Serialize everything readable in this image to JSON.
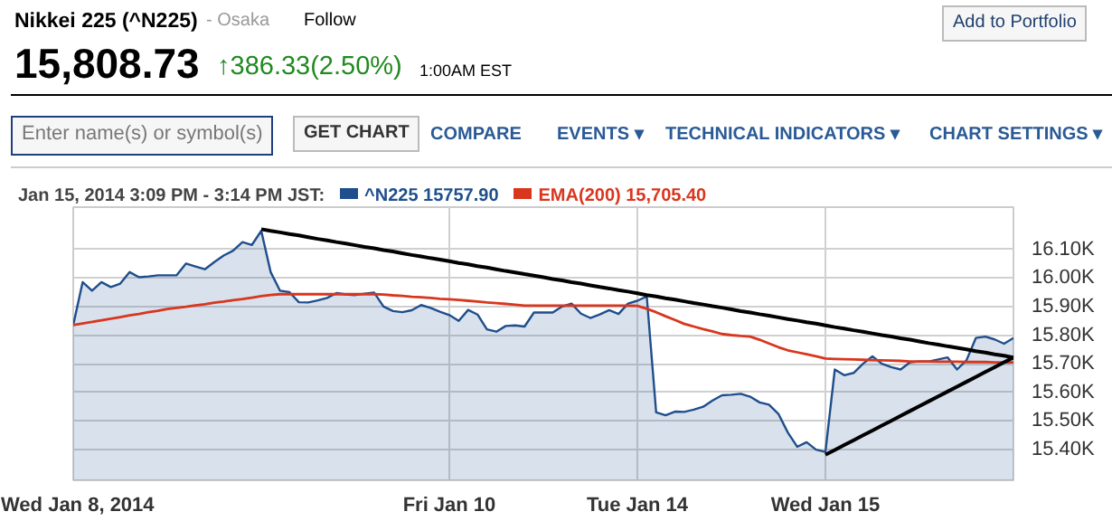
{
  "chart_data": {
    "type": "area",
    "title": "Nikkei 225 (^N225)",
    "subtitle": "15,808.73",
    "annotations": [
      "- Osaka",
      "Follow",
      "↑386.33(2.50%)",
      "1:00AM EST",
      "Add to Portfolio",
      "Enter name(s) or symbol(s)",
      "GET CHART",
      "COMPARE",
      "EVENTS ▾",
      "TECHNICAL INDICATORS ▾",
      "CHART SETTINGS ▾"
    ],
    "legend_title": "Jan 15, 2014 3:09 PM - 3:14 PM JST:",
    "legend": "top",
    "categories": [
      "Wed Jan 8, 2014",
      null,
      null,
      null,
      null,
      null,
      null,
      null,
      null,
      null,
      null,
      null,
      null,
      null,
      null,
      null,
      null,
      null,
      null,
      null,
      null,
      null,
      null,
      null,
      null,
      null,
      null,
      null,
      null,
      null,
      null,
      null,
      null,
      null,
      null,
      null,
      null,
      null,
      null,
      null,
      "Fri Jan 10",
      null,
      null,
      null,
      null,
      null,
      null,
      null,
      null,
      null,
      null,
      null,
      null,
      null,
      null,
      null,
      null,
      null,
      null,
      null,
      "Tue Jan 14",
      null,
      null,
      null,
      null,
      null,
      null,
      null,
      null,
      null,
      null,
      null,
      null,
      null,
      null,
      null,
      null,
      null,
      null,
      null,
      "Wed Jan 15",
      null,
      null,
      null,
      null,
      null,
      null,
      null,
      null,
      null,
      null,
      null,
      null,
      null,
      null,
      null,
      null,
      null,
      null,
      null,
      null
    ],
    "ylim": [
      15293,
      16247
    ],
    "yticks": [
      {
        "value": 15400,
        "label": "15.40K"
      },
      {
        "value": 15500,
        "label": "15.50K"
      },
      {
        "value": 15600,
        "label": "15.60K"
      },
      {
        "value": 15700,
        "label": "15.70K"
      },
      {
        "value": 15800,
        "label": "15.80K"
      },
      {
        "value": 15900,
        "label": "15.90K"
      },
      {
        "value": 16000,
        "label": "16.00K"
      },
      {
        "value": 16100,
        "label": "16.10K"
      }
    ],
    "grid": true,
    "series": [
      {
        "name": "^N225 15757.90",
        "color": "#1f4e8c",
        "values": [
          15835,
          15985,
          15955,
          15985,
          15968,
          15980,
          16020,
          16002,
          16005,
          16009,
          16009,
          16009,
          16050,
          16040,
          16030,
          16055,
          16078,
          16095,
          16125,
          16115,
          16164,
          16020,
          15955,
          15950,
          15915,
          15914,
          15921,
          15930,
          15947,
          15942,
          15940,
          15945,
          15949,
          15900,
          15884,
          15880,
          15887,
          15905,
          15895,
          15882,
          15870,
          15850,
          15888,
          15872,
          15820,
          15812,
          15832,
          15834,
          15830,
          15879,
          15879,
          15879,
          15900,
          15910,
          15875,
          15860,
          15872,
          15887,
          15874,
          15910,
          15920,
          15935,
          15530,
          15520,
          15533,
          15532,
          15540,
          15550,
          15572,
          15590,
          15592,
          15595,
          15585,
          15565,
          15557,
          15525,
          15460,
          15410,
          15426,
          15400,
          15392,
          15680,
          15660,
          15668,
          15700,
          15726,
          15700,
          15688,
          15680,
          15705,
          15708,
          15708,
          15715,
          15722,
          15680,
          15712,
          15790,
          15795,
          15785,
          15770,
          15790
        ]
      },
      {
        "name": "EMA(200) 15,705.40",
        "type": "line",
        "color": "#d9361e",
        "values": [
          15835,
          15841,
          15846,
          15852,
          15857,
          15863,
          15869,
          15874,
          15880,
          15885,
          15891,
          15895,
          15899,
          15904,
          15908,
          15913,
          15917,
          15922,
          15926,
          15931,
          15936,
          15940,
          15943,
          15943,
          15943,
          15943,
          15943,
          15943,
          15943,
          15943,
          15943,
          15943,
          15943,
          15942,
          15939,
          15937,
          15934,
          15932,
          15930,
          15927,
          15925,
          15923,
          15920,
          15917,
          15914,
          15912,
          15909,
          15906,
          15903,
          15903,
          15903,
          15903,
          15903,
          15903,
          15903,
          15903,
          15903,
          15903,
          15903,
          15903,
          15902,
          15892,
          15880,
          15866,
          15853,
          15839,
          15830,
          15821,
          15813,
          15804,
          15800,
          15797,
          15795,
          15784,
          15771,
          15758,
          15747,
          15740,
          15733,
          15726,
          15718,
          15717,
          15716,
          15715,
          15714,
          15713,
          15712,
          15711,
          15710,
          15708,
          15708,
          15708,
          15707,
          15707,
          15707,
          15706,
          15706,
          15706,
          15705,
          15705,
          15705
        ]
      },
      {
        "type": "line",
        "color": "#000000",
        "values": [
          null,
          null,
          null,
          null,
          null,
          null,
          null,
          null,
          null,
          null,
          null,
          null,
          null,
          null,
          null,
          null,
          null,
          null,
          null,
          null,
          16170,
          16164,
          16159,
          16153,
          16148,
          16142,
          16136,
          16131,
          16125,
          16120,
          16114,
          16108,
          16103,
          16097,
          16092,
          16086,
          16080,
          16075,
          16069,
          16064,
          16058,
          16052,
          16047,
          16041,
          16036,
          16030,
          16024,
          16019,
          16013,
          16008,
          16002,
          15996,
          15991,
          15985,
          15980,
          15974,
          15968,
          15963,
          15957,
          15952,
          15946,
          15940,
          15935,
          15929,
          15924,
          15918,
          15912,
          15907,
          15901,
          15896,
          15890,
          15884,
          15879,
          15873,
          15868,
          15862,
          15856,
          15851,
          15845,
          15840,
          15834,
          15828,
          15823,
          15817,
          15812,
          15806,
          15800,
          15795,
          15789,
          15784,
          15778,
          15772,
          15767,
          15761,
          15756,
          15750,
          15744,
          15739,
          15733,
          15728,
          15722
        ]
      },
      {
        "type": "line",
        "color": "#000000",
        "values": [
          null,
          null,
          null,
          null,
          null,
          null,
          null,
          null,
          null,
          null,
          null,
          null,
          null,
          null,
          null,
          null,
          null,
          null,
          null,
          null,
          null,
          null,
          null,
          null,
          null,
          null,
          null,
          null,
          null,
          null,
          null,
          null,
          null,
          null,
          null,
          null,
          null,
          null,
          null,
          null,
          null,
          null,
          null,
          null,
          null,
          null,
          null,
          null,
          null,
          null,
          null,
          null,
          null,
          null,
          null,
          null,
          null,
          null,
          null,
          null,
          null,
          null,
          null,
          null,
          null,
          null,
          null,
          null,
          null,
          null,
          null,
          null,
          null,
          null,
          null,
          null,
          null,
          null,
          null,
          null,
          15382,
          15399,
          15416,
          15433,
          15450,
          15467,
          15484,
          15501,
          15518,
          15535,
          15552,
          15569,
          15586,
          15603,
          15620,
          15637,
          15654,
          15671,
          15688,
          15705,
          15722
        ]
      }
    ]
  }
}
